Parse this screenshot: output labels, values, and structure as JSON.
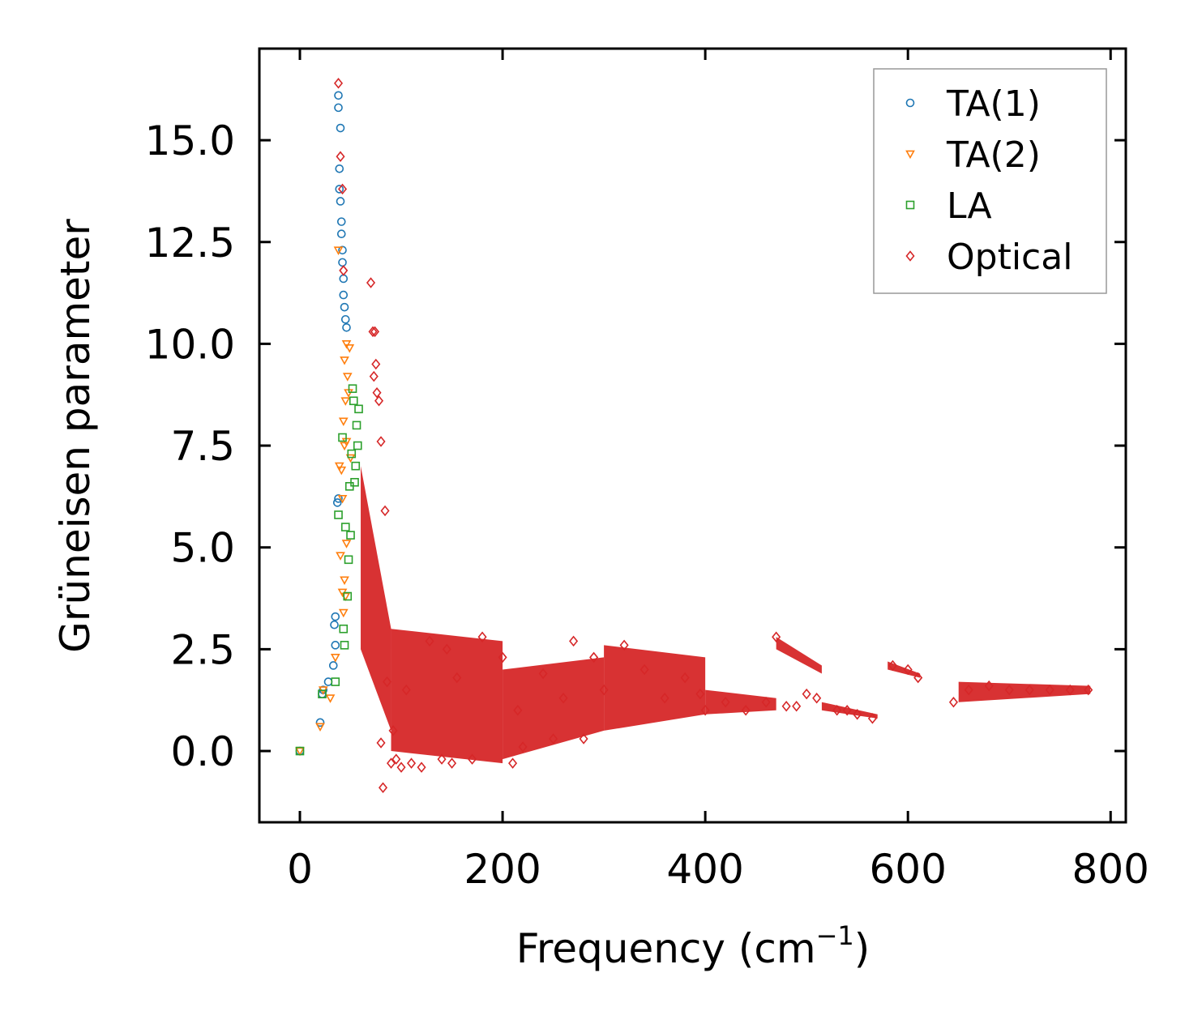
{
  "chart_data": {
    "type": "scatter",
    "title": "",
    "xlabel": "Frequency (cm",
    "xlabel_sup": "−1",
    "xlabel_end": ")",
    "ylabel": "Grüneisen parameter",
    "xlim": [
      -40,
      815
    ],
    "ylim": [
      -1.75,
      17.25
    ],
    "xticks": [
      0,
      200,
      400,
      600,
      800
    ],
    "xtick_labels": [
      "0",
      "200",
      "400",
      "600",
      "800"
    ],
    "yticks": [
      0.0,
      2.5,
      5.0,
      7.5,
      10.0,
      12.5,
      15.0
    ],
    "ytick_labels": [
      "0.0",
      "2.5",
      "5.0",
      "7.5",
      "10.0",
      "12.5",
      "15.0"
    ],
    "legend_position": "top-right",
    "series": [
      {
        "name": "TA(1)",
        "color": "#1f77b4",
        "marker": "circle",
        "points": [
          [
            0,
            0
          ],
          [
            20,
            0.7
          ],
          [
            22,
            1.4
          ],
          [
            23,
            1.5
          ],
          [
            28,
            1.7
          ],
          [
            33,
            2.1
          ],
          [
            34,
            3.1
          ],
          [
            35,
            3.3
          ],
          [
            35,
            2.6
          ],
          [
            37,
            6.1
          ],
          [
            38,
            6.2
          ],
          [
            38,
            16.1
          ],
          [
            38,
            15.8
          ],
          [
            39,
            14.3
          ],
          [
            39,
            13.8
          ],
          [
            40,
            13.5
          ],
          [
            40,
            15.3
          ],
          [
            41,
            13.0
          ],
          [
            41,
            12.7
          ],
          [
            42,
            12.3
          ],
          [
            42,
            12.0
          ],
          [
            43,
            11.6
          ],
          [
            43,
            11.2
          ],
          [
            44,
            10.9
          ],
          [
            45,
            10.6
          ],
          [
            46,
            10.4
          ]
        ]
      },
      {
        "name": "TA(2)",
        "color": "#ff7f0e",
        "marker": "triangle-down",
        "points": [
          [
            0,
            0
          ],
          [
            20,
            0.6
          ],
          [
            23,
            1.5
          ],
          [
            30,
            1.3
          ],
          [
            35,
            2.3
          ],
          [
            38,
            12.3
          ],
          [
            39,
            7.0
          ],
          [
            40,
            4.8
          ],
          [
            41,
            6.9
          ],
          [
            42,
            6.2
          ],
          [
            43,
            8.1
          ],
          [
            44,
            7.5
          ],
          [
            44,
            9.6
          ],
          [
            45,
            8.6
          ],
          [
            46,
            10.0
          ],
          [
            46,
            7.6
          ],
          [
            47,
            9.2
          ],
          [
            48,
            8.8
          ],
          [
            49,
            9.9
          ],
          [
            50,
            7.2
          ],
          [
            42,
            3.9
          ],
          [
            43,
            3.4
          ],
          [
            44,
            4.2
          ],
          [
            45,
            3.8
          ],
          [
            46,
            5.1
          ]
        ]
      },
      {
        "name": "LA",
        "color": "#2ca02c",
        "marker": "square",
        "points": [
          [
            0,
            0
          ],
          [
            22,
            1.4
          ],
          [
            35,
            1.7
          ],
          [
            38,
            5.8
          ],
          [
            42,
            7.7
          ],
          [
            43,
            3.0
          ],
          [
            44,
            2.6
          ],
          [
            45,
            5.5
          ],
          [
            47,
            3.8
          ],
          [
            48,
            4.7
          ],
          [
            49,
            6.5
          ],
          [
            50,
            5.3
          ],
          [
            51,
            7.3
          ],
          [
            52,
            8.9
          ],
          [
            53,
            8.6
          ],
          [
            54,
            6.6
          ],
          [
            55,
            7.0
          ],
          [
            56,
            8.0
          ],
          [
            57,
            7.5
          ],
          [
            58,
            8.4
          ]
        ]
      },
      {
        "name": "Optical",
        "color": "#d62728",
        "marker": "diamond",
        "points": [
          [
            38,
            16.4
          ],
          [
            40,
            14.6
          ],
          [
            42,
            13.8
          ],
          [
            43,
            11.8
          ],
          [
            70,
            11.5
          ],
          [
            72,
            10.3
          ],
          [
            74,
            10.3
          ],
          [
            73,
            9.2
          ],
          [
            75,
            9.5
          ],
          [
            76,
            8.8
          ],
          [
            78,
            8.6
          ],
          [
            80,
            7.6
          ],
          [
            80,
            0.2
          ],
          [
            82,
            -0.9
          ],
          [
            84,
            5.9
          ],
          [
            86,
            1.7
          ],
          [
            90,
            -0.3
          ],
          [
            92,
            0.5
          ],
          [
            95,
            -0.2
          ],
          [
            100,
            -0.4
          ],
          [
            105,
            1.5
          ],
          [
            110,
            -0.3
          ],
          [
            120,
            -0.4
          ],
          [
            128,
            2.7
          ],
          [
            140,
            -0.2
          ],
          [
            145,
            2.5
          ],
          [
            150,
            -0.3
          ],
          [
            155,
            1.8
          ],
          [
            170,
            -0.2
          ],
          [
            180,
            2.8
          ],
          [
            200,
            2.3
          ],
          [
            210,
            -0.3
          ],
          [
            215,
            1.0
          ],
          [
            220,
            0.1
          ],
          [
            240,
            1.9
          ],
          [
            250,
            0.3
          ],
          [
            260,
            1.3
          ],
          [
            270,
            2.7
          ],
          [
            280,
            0.3
          ],
          [
            290,
            2.3
          ],
          [
            300,
            1.5
          ],
          [
            320,
            2.6
          ],
          [
            340,
            2.0
          ],
          [
            360,
            1.3
          ],
          [
            380,
            1.8
          ],
          [
            395,
            1.4
          ],
          [
            400,
            1.0
          ],
          [
            420,
            1.2
          ],
          [
            440,
            1.0
          ],
          [
            460,
            1.2
          ],
          [
            470,
            2.8
          ],
          [
            480,
            1.1
          ],
          [
            490,
            1.1
          ],
          [
            500,
            1.4
          ],
          [
            510,
            1.3
          ],
          [
            530,
            1.0
          ],
          [
            540,
            1.0
          ],
          [
            550,
            0.9
          ],
          [
            565,
            0.8
          ],
          [
            585,
            2.1
          ],
          [
            600,
            2.0
          ],
          [
            610,
            1.8
          ],
          [
            645,
            1.2
          ],
          [
            660,
            1.5
          ],
          [
            680,
            1.6
          ],
          [
            700,
            1.5
          ],
          [
            720,
            1.5
          ],
          [
            740,
            1.5
          ],
          [
            760,
            1.5
          ],
          [
            778,
            1.5
          ]
        ]
      }
    ]
  }
}
